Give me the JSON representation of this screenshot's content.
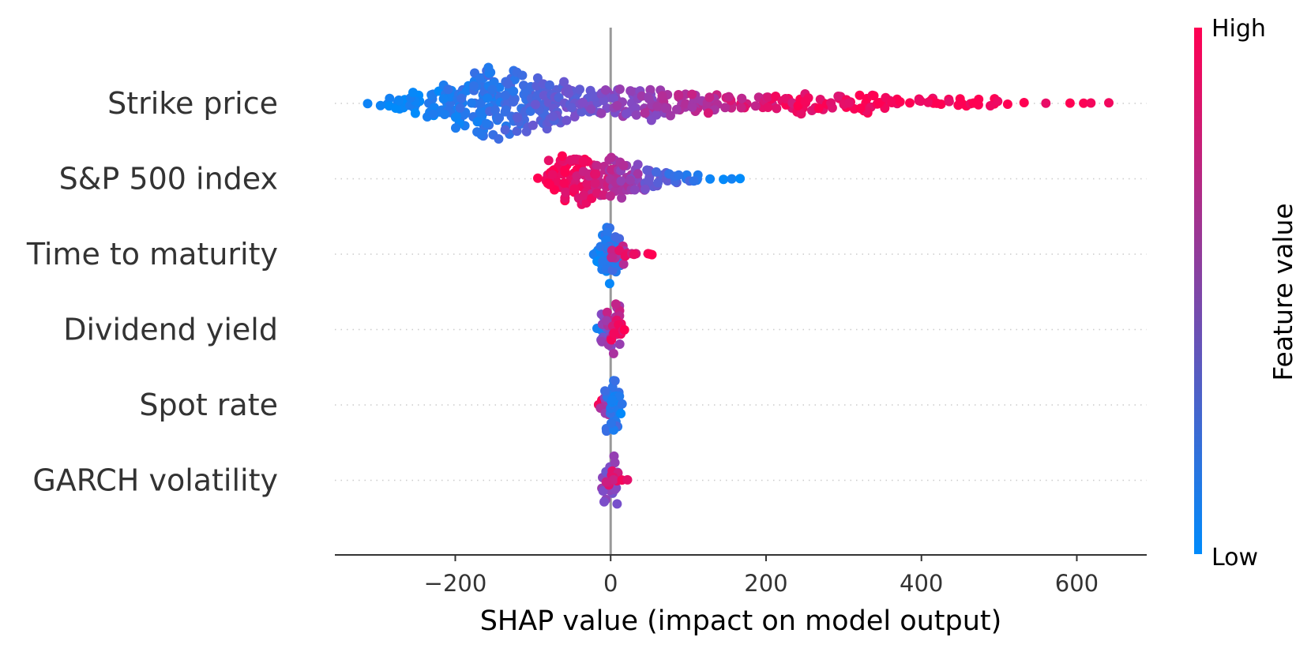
{
  "chart_data": {
    "type": "scatter",
    "subtype": "shap-beeswarm-summary",
    "xlabel": "SHAP value (impact on model output)",
    "xlim": [
      -355,
      690
    ],
    "xticks": [
      -200,
      0,
      200,
      400,
      600
    ],
    "xtick_labels": [
      "−200",
      "0",
      "200",
      "400",
      "600"
    ],
    "zero_line": true,
    "grid": "dotted row guides",
    "colorbar": {
      "title": "Feature value",
      "high_label": "High",
      "low_label": "Low",
      "low_color": "#008bfb",
      "high_color": "#ff0052",
      "placement": "right"
    },
    "features": [
      {
        "name": "Strike price",
        "bins": [
          {
            "x": -310,
            "n": 1,
            "c": 0.03
          },
          {
            "x": -290,
            "n": 2,
            "c": 0.04
          },
          {
            "x": -270,
            "n": 3,
            "c": 0.05
          },
          {
            "x": -250,
            "n": 4,
            "c": 0.07
          },
          {
            "x": -230,
            "n": 5,
            "c": 0.09
          },
          {
            "x": -210,
            "n": 6,
            "c": 0.11
          },
          {
            "x": -190,
            "n": 8,
            "c": 0.13
          },
          {
            "x": -170,
            "n": 10,
            "c": 0.16
          },
          {
            "x": -150,
            "n": 11,
            "c": 0.19
          },
          {
            "x": -130,
            "n": 10,
            "c": 0.23
          },
          {
            "x": -110,
            "n": 9,
            "c": 0.28
          },
          {
            "x": -90,
            "n": 8,
            "c": 0.32
          },
          {
            "x": -70,
            "n": 7,
            "c": 0.36
          },
          {
            "x": -50,
            "n": 7,
            "c": 0.42
          },
          {
            "x": -30,
            "n": 6,
            "c": 0.46
          },
          {
            "x": -10,
            "n": 5,
            "c": 0.5
          },
          {
            "x": 10,
            "n": 5,
            "c": 0.54
          },
          {
            "x": 30,
            "n": 5,
            "c": 0.58
          },
          {
            "x": 50,
            "n": 6,
            "c": 0.6
          },
          {
            "x": 70,
            "n": 5,
            "c": 0.64
          },
          {
            "x": 90,
            "n": 4,
            "c": 0.68
          },
          {
            "x": 110,
            "n": 4,
            "c": 0.72
          },
          {
            "x": 130,
            "n": 4,
            "c": 0.75
          },
          {
            "x": 150,
            "n": 3,
            "c": 0.78
          },
          {
            "x": 170,
            "n": 3,
            "c": 0.81
          },
          {
            "x": 190,
            "n": 3,
            "c": 0.84
          },
          {
            "x": 210,
            "n": 3,
            "c": 0.87
          },
          {
            "x": 230,
            "n": 3,
            "c": 0.9
          },
          {
            "x": 250,
            "n": 4,
            "c": 0.92
          },
          {
            "x": 270,
            "n": 3,
            "c": 0.94
          },
          {
            "x": 290,
            "n": 3,
            "c": 0.96
          },
          {
            "x": 310,
            "n": 3,
            "c": 0.97
          },
          {
            "x": 330,
            "n": 4,
            "c": 0.98
          },
          {
            "x": 350,
            "n": 3,
            "c": 0.98
          },
          {
            "x": 370,
            "n": 2,
            "c": 0.98
          },
          {
            "x": 390,
            "n": 2,
            "c": 0.99
          },
          {
            "x": 410,
            "n": 2,
            "c": 0.99
          },
          {
            "x": 430,
            "n": 2,
            "c": 0.99
          },
          {
            "x": 450,
            "n": 2,
            "c": 0.99
          },
          {
            "x": 470,
            "n": 2,
            "c": 0.99
          },
          {
            "x": 490,
            "n": 2,
            "c": 0.99
          },
          {
            "x": 510,
            "n": 1,
            "c": 0.99
          },
          {
            "x": 530,
            "n": 1,
            "c": 0.99
          },
          {
            "x": 555,
            "n": 1,
            "c": 0.99
          },
          {
            "x": 585,
            "n": 1,
            "c": 0.99
          },
          {
            "x": 605,
            "n": 1,
            "c": 0.99
          },
          {
            "x": 625,
            "n": 1,
            "c": 0.99
          },
          {
            "x": 642,
            "n": 1,
            "c": 0.99
          }
        ]
      },
      {
        "name": "S&P 500 index",
        "bins": [
          {
            "x": -85,
            "n": 3,
            "c": 0.97
          },
          {
            "x": -70,
            "n": 6,
            "c": 0.97
          },
          {
            "x": -55,
            "n": 8,
            "c": 0.96
          },
          {
            "x": -40,
            "n": 8,
            "c": 0.92
          },
          {
            "x": -25,
            "n": 7,
            "c": 0.86
          },
          {
            "x": -10,
            "n": 6,
            "c": 0.8
          },
          {
            "x": 5,
            "n": 7,
            "c": 0.72
          },
          {
            "x": 20,
            "n": 6,
            "c": 0.64
          },
          {
            "x": 35,
            "n": 5,
            "c": 0.56
          },
          {
            "x": 50,
            "n": 4,
            "c": 0.46
          },
          {
            "x": 65,
            "n": 3,
            "c": 0.36
          },
          {
            "x": 80,
            "n": 3,
            "c": 0.28
          },
          {
            "x": 95,
            "n": 2,
            "c": 0.2
          },
          {
            "x": 110,
            "n": 2,
            "c": 0.14
          },
          {
            "x": 125,
            "n": 1,
            "c": 0.1
          },
          {
            "x": 140,
            "n": 1,
            "c": 0.07
          },
          {
            "x": 155,
            "n": 1,
            "c": 0.05
          },
          {
            "x": 165,
            "n": 1,
            "c": 0.04
          }
        ]
      },
      {
        "name": "Time to maturity",
        "bins": [
          {
            "x": -15,
            "n": 2,
            "c": 0.1
          },
          {
            "x": -8,
            "n": 5,
            "c": 0.08
          },
          {
            "x": -2,
            "n": 9,
            "c": 0.12
          },
          {
            "x": 4,
            "n": 7,
            "c": 0.2
          },
          {
            "x": 10,
            "n": 4,
            "c": 0.7
          },
          {
            "x": 18,
            "n": 2,
            "c": 0.85
          },
          {
            "x": 26,
            "n": 1,
            "c": 0.9
          },
          {
            "x": 34,
            "n": 1,
            "c": 0.92
          },
          {
            "x": 42,
            "n": 1,
            "c": 0.95
          },
          {
            "x": 50,
            "n": 1,
            "c": 0.97
          },
          {
            "x": 56,
            "n": 1,
            "c": 0.98
          }
        ]
      },
      {
        "name": "Dividend yield",
        "bins": [
          {
            "x": -8,
            "n": 2,
            "c": 0.1
          },
          {
            "x": -3,
            "n": 6,
            "c": 0.5
          },
          {
            "x": 2,
            "n": 8,
            "c": 0.7
          },
          {
            "x": 7,
            "n": 4,
            "c": 0.9
          },
          {
            "x": 12,
            "n": 2,
            "c": 0.95
          },
          {
            "x": 17,
            "n": 1,
            "c": 0.97
          }
        ]
      },
      {
        "name": "Spot rate",
        "bins": [
          {
            "x": -8,
            "n": 2,
            "c": 0.95
          },
          {
            "x": -3,
            "n": 5,
            "c": 0.6
          },
          {
            "x": 1,
            "n": 9,
            "c": 0.2
          },
          {
            "x": 5,
            "n": 4,
            "c": 0.1
          }
        ]
      },
      {
        "name": "GARCH volatility",
        "bins": [
          {
            "x": -4,
            "n": 4,
            "c": 0.6
          },
          {
            "x": 0,
            "n": 8,
            "c": 0.5
          },
          {
            "x": 4,
            "n": 4,
            "c": 0.85
          },
          {
            "x": 9,
            "n": 1,
            "c": 0.95
          },
          {
            "x": 15,
            "n": 1,
            "c": 0.97
          }
        ]
      }
    ]
  }
}
